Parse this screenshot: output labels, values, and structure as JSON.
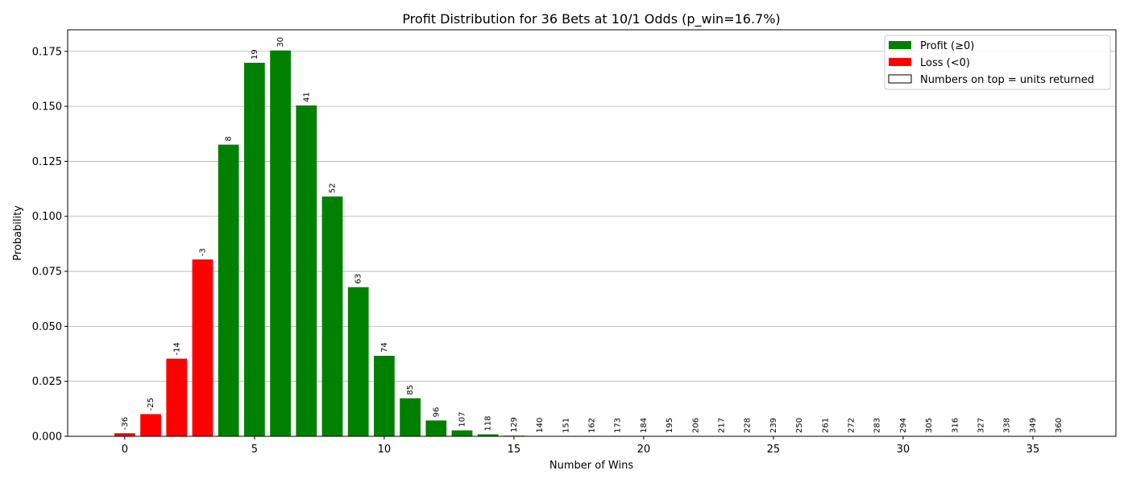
{
  "chart_data": {
    "type": "bar",
    "title": "Profit Distribution for 36 Bets at 10/1 Odds (p_win=16.7%)",
    "xlabel": "Number of Wins",
    "ylabel": "Probability",
    "xlim": [
      -2.2,
      38.2
    ],
    "ylim": [
      0,
      0.1848
    ],
    "xticks": [
      0,
      5,
      10,
      15,
      20,
      25,
      30,
      35
    ],
    "yticks": [
      "0.000",
      "0.025",
      "0.050",
      "0.075",
      "0.100",
      "0.125",
      "0.150",
      "0.175"
    ],
    "grid": "horizontal",
    "legend_position": "top-right",
    "colors": {
      "profit": "#008000",
      "loss": "#ff0000",
      "note": "#ffffff"
    },
    "legend": [
      {
        "label": "Profit (≥0)",
        "color": "#008000"
      },
      {
        "label": "Loss (<0)",
        "color": "#ff0000"
      },
      {
        "label": "Numbers on top = units returned",
        "color": "#ffffff"
      }
    ],
    "x": [
      0,
      1,
      2,
      3,
      4,
      5,
      6,
      7,
      8,
      9,
      10,
      11,
      12,
      13,
      14,
      15,
      16,
      17,
      18,
      19,
      20,
      21,
      22,
      23,
      24,
      25,
      26,
      27,
      28,
      29,
      30,
      31,
      32,
      33,
      34,
      35,
      36
    ],
    "values": [
      0.0014,
      0.0101,
      0.0353,
      0.0804,
      0.1326,
      0.1698,
      0.1754,
      0.1504,
      0.109,
      0.0678,
      0.0366,
      0.0173,
      0.0072,
      0.0027,
      0.0009,
      0.0003,
      0.0001,
      2e-05,
      5e-06,
      1e-06,
      0,
      0,
      0,
      0,
      0,
      0,
      0,
      0,
      0,
      0,
      0,
      0,
      0,
      0,
      0,
      0,
      0
    ],
    "bar_labels": [
      "-36",
      "-25",
      "-14",
      "-3",
      "8",
      "19",
      "30",
      "41",
      "52",
      "63",
      "74",
      "85",
      "96",
      "107",
      "118",
      "129",
      "140",
      "151",
      "162",
      "173",
      "184",
      "195",
      "206",
      "217",
      "228",
      "239",
      "250",
      "261",
      "272",
      "283",
      "294",
      "305",
      "316",
      "327",
      "338",
      "349",
      "360"
    ]
  }
}
